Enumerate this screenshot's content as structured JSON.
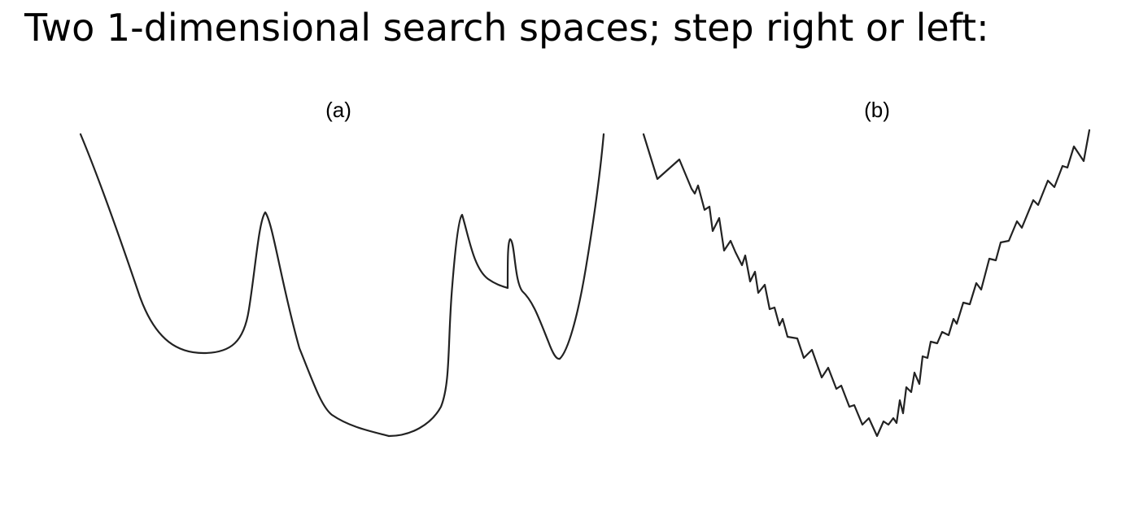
{
  "slide": {
    "title": "Two 1-dimensional search spaces; step right or left:"
  },
  "panels": [
    {
      "label": "(a)"
    },
    {
      "label": "(b)"
    }
  ]
}
